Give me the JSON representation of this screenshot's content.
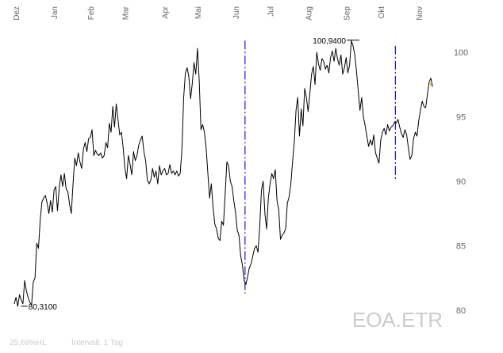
{
  "chart_data": {
    "type": "line",
    "symbol": "EOA.ETR",
    "footer": {
      "volatility": "25,69%HL",
      "interval": "Intervall: 1 Tag"
    },
    "y_ticks": [
      80,
      85,
      90,
      95,
      100
    ],
    "ylim": [
      79.2,
      101.6
    ],
    "x_range": [
      0,
      252
    ],
    "months": [
      {
        "label": "Dez",
        "x": 1
      },
      {
        "label": "Jan",
        "x": 23
      },
      {
        "label": "Feb",
        "x": 44
      },
      {
        "label": "Mar",
        "x": 64
      },
      {
        "label": "Apr",
        "x": 87
      },
      {
        "label": "Mai",
        "x": 106
      },
      {
        "label": "Jun",
        "x": 128
      },
      {
        "label": "Jul",
        "x": 148
      },
      {
        "label": "Aug",
        "x": 170
      },
      {
        "label": "Sep",
        "x": 192
      },
      {
        "label": "Okt",
        "x": 212
      },
      {
        "label": "Nov",
        "x": 234
      }
    ],
    "markers": [
      {
        "x": 133.5,
        "y_from": 81.3,
        "y_to": 100.9
      },
      {
        "x": 220.5,
        "y_from": 90.1,
        "y_to": 100.5
      }
    ],
    "extremes": {
      "low": {
        "label": "80,3100",
        "x": 4,
        "value": 80.31
      },
      "high": {
        "label": "100,9400",
        "x": 196,
        "value": 100.94
      }
    },
    "series": [
      {
        "values": [
          [
            0,
            80.5
          ],
          [
            1,
            81.0
          ],
          [
            2,
            80.3
          ],
          [
            3,
            81.2
          ],
          [
            4,
            80.8
          ],
          [
            5,
            80.5
          ],
          [
            6,
            82.3
          ],
          [
            7,
            81.5
          ],
          [
            8,
            81.0
          ],
          [
            9,
            80.6
          ],
          [
            10,
            80.4
          ],
          [
            11,
            82.2
          ],
          [
            12,
            82.5
          ],
          [
            13,
            85.2
          ],
          [
            14,
            84.8
          ],
          [
            15,
            87.0
          ],
          [
            16,
            88.4
          ],
          [
            17,
            88.7
          ],
          [
            18,
            88.9
          ],
          [
            19,
            88.3
          ],
          [
            20,
            87.5
          ],
          [
            21,
            88.5
          ],
          [
            22,
            87.6
          ],
          [
            23,
            89.3
          ],
          [
            24,
            89.6
          ],
          [
            25,
            87.7
          ],
          [
            26,
            89.5
          ],
          [
            27,
            90.5
          ],
          [
            28,
            89.6
          ],
          [
            29,
            90.6
          ],
          [
            30,
            89.4
          ],
          [
            31,
            89.2
          ],
          [
            32,
            88.2
          ],
          [
            33,
            87.5
          ],
          [
            34,
            89.8
          ],
          [
            35,
            91.8
          ],
          [
            36,
            91.2
          ],
          [
            37,
            92.2
          ],
          [
            38,
            91.5
          ],
          [
            39,
            91.0
          ],
          [
            40,
            92.5
          ],
          [
            41,
            93.0
          ],
          [
            42,
            92.3
          ],
          [
            43,
            93.3
          ],
          [
            44,
            93.4
          ],
          [
            45,
            94.0
          ],
          [
            46,
            92.0
          ],
          [
            47,
            92.4
          ],
          [
            48,
            92.1
          ],
          [
            49,
            92.0
          ],
          [
            50,
            92.2
          ],
          [
            51,
            91.8
          ],
          [
            52,
            92.0
          ],
          [
            53,
            93.0
          ],
          [
            54,
            92.6
          ],
          [
            55,
            94.5
          ],
          [
            56,
            93.8
          ],
          [
            57,
            95.8
          ],
          [
            58,
            94.2
          ],
          [
            59,
            96.0
          ],
          [
            60,
            94.8
          ],
          [
            61,
            93.6
          ],
          [
            62,
            93.8
          ],
          [
            63,
            92.6
          ],
          [
            64,
            91.0
          ],
          [
            65,
            90.2
          ],
          [
            66,
            92.0
          ],
          [
            67,
            91.3
          ],
          [
            68,
            90.5
          ],
          [
            69,
            92.3
          ],
          [
            70,
            91.6
          ],
          [
            71,
            92.0
          ],
          [
            72,
            92.8
          ],
          [
            73,
            93.2
          ],
          [
            74,
            93.5
          ],
          [
            75,
            92.3
          ],
          [
            76,
            91.6
          ],
          [
            77,
            90.1
          ],
          [
            78,
            89.8
          ],
          [
            79,
            90.1
          ],
          [
            80,
            91.0
          ],
          [
            81,
            90.3
          ],
          [
            82,
            90.8
          ],
          [
            83,
            89.8
          ],
          [
            84,
            91.2
          ],
          [
            85,
            90.5
          ],
          [
            86,
            90.8
          ],
          [
            87,
            91.0
          ],
          [
            88,
            90.5
          ],
          [
            89,
            90.6
          ],
          [
            90,
            91.3
          ],
          [
            91,
            90.6
          ],
          [
            92,
            90.8
          ],
          [
            93,
            90.5
          ],
          [
            94,
            90.8
          ],
          [
            95,
            90.4
          ],
          [
            96,
            90.6
          ],
          [
            97,
            92.5
          ],
          [
            98,
            96.5
          ],
          [
            99,
            98.4
          ],
          [
            100,
            98.8
          ],
          [
            101,
            98.1
          ],
          [
            102,
            96.4
          ],
          [
            103,
            97.6
          ],
          [
            104,
            99.2
          ],
          [
            105,
            98.3
          ],
          [
            106,
            100.3
          ],
          [
            107,
            97.8
          ],
          [
            108,
            94.0
          ],
          [
            109,
            94.4
          ],
          [
            110,
            93.8
          ],
          [
            111,
            92.6
          ],
          [
            112,
            90.6
          ],
          [
            113,
            88.7
          ],
          [
            114,
            89.8
          ],
          [
            115,
            88.0
          ],
          [
            116,
            86.7
          ],
          [
            117,
            86.3
          ],
          [
            118,
            85.6
          ],
          [
            119,
            85.4
          ],
          [
            120,
            86.9
          ],
          [
            121,
            86.6
          ],
          [
            122,
            89.0
          ],
          [
            123,
            91.5
          ],
          [
            124,
            91.2
          ],
          [
            125,
            90.0
          ],
          [
            126,
            89.6
          ],
          [
            127,
            88.5
          ],
          [
            128,
            87.6
          ],
          [
            129,
            86.2
          ],
          [
            130,
            85.8
          ],
          [
            131,
            84.2
          ],
          [
            132,
            83.5
          ],
          [
            133,
            82.3
          ],
          [
            134,
            82.0
          ],
          [
            135,
            82.6
          ],
          [
            136,
            83.3
          ],
          [
            137,
            83.6
          ],
          [
            138,
            84.2
          ],
          [
            139,
            84.8
          ],
          [
            140,
            85.0
          ],
          [
            141,
            84.5
          ],
          [
            142,
            86.5
          ],
          [
            143,
            89.3
          ],
          [
            144,
            90.0
          ],
          [
            145,
            87.5
          ],
          [
            146,
            86.3
          ],
          [
            147,
            88.7
          ],
          [
            148,
            89.8
          ],
          [
            149,
            90.6
          ],
          [
            150,
            90.2
          ],
          [
            151,
            90.9
          ],
          [
            152,
            88.5
          ],
          [
            153,
            87.8
          ],
          [
            154,
            85.5
          ],
          [
            155,
            85.8
          ],
          [
            156,
            86.0
          ],
          [
            157,
            86.3
          ],
          [
            158,
            88.3
          ],
          [
            159,
            88.8
          ],
          [
            160,
            89.8
          ],
          [
            161,
            91.5
          ],
          [
            162,
            93.0
          ],
          [
            163,
            95.5
          ],
          [
            164,
            96.5
          ],
          [
            165,
            93.5
          ],
          [
            166,
            95.6
          ],
          [
            167,
            94.3
          ],
          [
            168,
            97.2
          ],
          [
            169,
            96.5
          ],
          [
            170,
            95.4
          ],
          [
            171,
            96.8
          ],
          [
            172,
            98.3
          ],
          [
            173,
            98.9
          ],
          [
            174,
            97.5
          ],
          [
            175,
            100.0
          ],
          [
            176,
            99.1
          ],
          [
            177,
            98.6
          ],
          [
            178,
            99.5
          ],
          [
            179,
            99.3
          ],
          [
            180,
            98.7
          ],
          [
            181,
            99.0
          ],
          [
            182,
            98.4
          ],
          [
            183,
            99.6
          ],
          [
            184,
            100.1
          ],
          [
            185,
            99.3
          ],
          [
            186,
            100.3
          ],
          [
            187,
            99.5
          ],
          [
            188,
            99.0
          ],
          [
            189,
            99.8
          ],
          [
            190,
            98.3
          ],
          [
            191,
            98.8
          ],
          [
            192,
            99.6
          ],
          [
            193,
            98.4
          ],
          [
            194,
            99.0
          ],
          [
            195,
            100.9
          ],
          [
            196,
            100.5
          ],
          [
            197,
            99.8
          ],
          [
            198,
            98.5
          ],
          [
            199,
            97.0
          ],
          [
            200,
            95.5
          ],
          [
            201,
            96.5
          ],
          [
            202,
            95.0
          ],
          [
            203,
            94.3
          ],
          [
            204,
            93.5
          ],
          [
            205,
            92.7
          ],
          [
            206,
            93.2
          ],
          [
            207,
            92.8
          ],
          [
            208,
            93.6
          ],
          [
            209,
            92.2
          ],
          [
            210,
            91.8
          ],
          [
            211,
            91.4
          ],
          [
            212,
            93.2
          ],
          [
            213,
            93.8
          ],
          [
            214,
            94.1
          ],
          [
            215,
            93.6
          ],
          [
            216,
            94.4
          ],
          [
            217,
            93.9
          ],
          [
            218,
            94.2
          ],
          [
            219,
            94.3
          ],
          [
            220,
            94.6
          ],
          [
            221,
            94.5
          ],
          [
            222,
            94.8
          ],
          [
            223,
            94.2
          ],
          [
            224,
            93.7
          ],
          [
            225,
            93.4
          ],
          [
            226,
            94.0
          ],
          [
            227,
            93.6
          ],
          [
            228,
            92.6
          ],
          [
            229,
            91.7
          ],
          [
            230,
            92.0
          ],
          [
            231,
            93.3
          ],
          [
            232,
            93.8
          ],
          [
            233,
            93.5
          ],
          [
            234,
            94.7
          ],
          [
            235,
            95.5
          ],
          [
            236,
            96.2
          ],
          [
            237,
            95.8
          ],
          [
            238,
            95.7
          ],
          [
            239,
            96.7
          ],
          [
            240,
            97.7
          ],
          [
            241,
            98.0
          ],
          [
            242,
            97.3
          ]
        ]
      }
    ]
  }
}
